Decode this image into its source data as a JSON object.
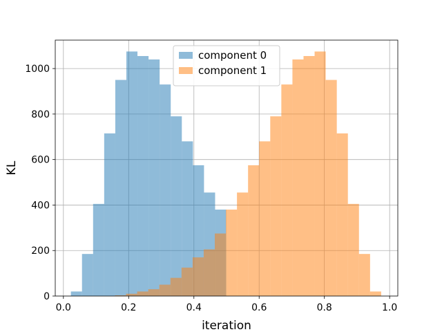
{
  "chart_data": {
    "type": "bar",
    "xlabel": "iteration",
    "ylabel": "KL",
    "xlim": [
      -0.025,
      1.025
    ],
    "ylim": [
      0,
      1125
    ],
    "grid": true,
    "legend_position": "top-center",
    "x_ticks": [
      {
        "value": 0.0,
        "label": "0.0"
      },
      {
        "value": 0.2,
        "label": "0.2"
      },
      {
        "value": 0.4,
        "label": "0.4"
      },
      {
        "value": 0.6,
        "label": "0.6"
      },
      {
        "value": 0.8,
        "label": "0.8"
      },
      {
        "value": 1.0,
        "label": "1.0"
      }
    ],
    "y_ticks": [
      {
        "value": 0,
        "label": "0"
      },
      {
        "value": 200,
        "label": "200"
      },
      {
        "value": 400,
        "label": "400"
      },
      {
        "value": 600,
        "label": "600"
      },
      {
        "value": 800,
        "label": "800"
      },
      {
        "value": 1000,
        "label": "1000"
      }
    ],
    "series": [
      {
        "name": "component 0",
        "color": "#1f77b4",
        "alpha": 0.5,
        "bin_edges": [
          0.023,
          0.057,
          0.091,
          0.125,
          0.159,
          0.193,
          0.227,
          0.261,
          0.295,
          0.329,
          0.363,
          0.397,
          0.431,
          0.465,
          0.499
        ],
        "counts": [
          20,
          185,
          405,
          715,
          950,
          1075,
          1055,
          1040,
          930,
          790,
          680,
          575,
          455,
          380
        ]
      },
      {
        "name": "component 1",
        "color": "#ff7f0e",
        "alpha": 0.5,
        "bin_edges": [
          0.158,
          0.192,
          0.226,
          0.26,
          0.294,
          0.328,
          0.362,
          0.396,
          0.43,
          0.464,
          0.498,
          0.532,
          0.566,
          0.6,
          0.634,
          0.668,
          0.702,
          0.736,
          0.77,
          0.804,
          0.838,
          0.872,
          0.906,
          0.94,
          0.974
        ],
        "counts": [
          3,
          10,
          20,
          30,
          50,
          80,
          125,
          170,
          205,
          275,
          380,
          455,
          575,
          680,
          790,
          930,
          1040,
          1055,
          1075,
          950,
          715,
          405,
          185,
          20
        ]
      }
    ]
  }
}
